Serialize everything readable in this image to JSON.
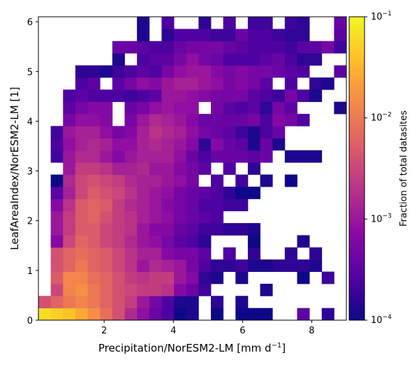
{
  "chart_data": {
    "type": "heatmap",
    "x_range": [
      0.1,
      9.0
    ],
    "y_range": [
      0.0,
      6.1
    ],
    "x_bins": 25,
    "y_bins": 25,
    "x_ticks": [
      2,
      4,
      6,
      8
    ],
    "y_ticks": [
      0,
      1,
      2,
      3,
      4,
      5,
      6
    ],
    "colormap": "plasma",
    "color_scale": "log",
    "color_range": [
      0.0001,
      0.1
    ],
    "xlabel": "Precipitation/NorESM2-LM [mm d$^{-1}$]",
    "ylabel": "LeafAreaIndex/NorESM2-LM [1]",
    "colorbar": {
      "label": "Fraction of total datasites",
      "ticks": [
        {
          "value": 0.1,
          "base": "10",
          "exp": "−1"
        },
        {
          "value": 0.01,
          "base": "10",
          "exp": "−2"
        },
        {
          "value": 0.001,
          "base": "10",
          "exp": "−3"
        },
        {
          "value": 0.0001,
          "base": "10",
          "exp": "−4"
        }
      ]
    },
    "cells_note": "each row is one y-bin from bottom (y=0) to top; each entry is log10 of fraction for x-bins left to right, null = empty",
    "cells": [
      [
        -1.2,
        -1.3,
        -1.4,
        -1.6,
        -1.8,
        -2.1,
        -2.4,
        -2.8,
        -3.1,
        -3.4,
        -3.6,
        -4.0,
        -3.9,
        null,
        -4.0,
        null,
        -4.0,
        -4.0,
        -4.0,
        null,
        null,
        -3.5,
        null,
        -3.8,
        null
      ],
      [
        -2.4,
        -2.2,
        -2.0,
        -1.9,
        -2.0,
        -2.2,
        -2.4,
        -2.6,
        -3.0,
        -3.3,
        -3.6,
        -3.9,
        -3.9,
        null,
        -3.8,
        null,
        -3.9,
        null,
        null,
        null,
        null,
        null,
        null,
        null,
        null
      ],
      [
        null,
        -2.5,
        -1.9,
        -1.8,
        -2.0,
        -2.2,
        -2.4,
        -2.5,
        -2.6,
        -2.6,
        -2.7,
        -3.2,
        -3.4,
        -3.7,
        null,
        null,
        null,
        null,
        -3.9,
        null,
        null,
        null,
        null,
        null,
        null
      ],
      [
        null,
        -2.3,
        -1.9,
        -1.9,
        -2.1,
        -2.2,
        -2.4,
        -2.6,
        -2.7,
        -2.6,
        -2.6,
        -3.0,
        -3.2,
        -3.8,
        -3.9,
        null,
        -3.9,
        null,
        null,
        null,
        null,
        -4.0,
        null,
        -3.7,
        null
      ],
      [
        null,
        -2.4,
        -2.2,
        -2.0,
        -2.2,
        -2.3,
        -2.5,
        -2.7,
        -3.0,
        -2.8,
        -2.9,
        -3.0,
        -3.3,
        -3.6,
        -3.8,
        -3.8,
        -3.7,
        -3.9,
        -3.9,
        -3.8,
        -3.8,
        -3.8,
        -3.9,
        null,
        null
      ],
      [
        null,
        -2.4,
        -2.2,
        -2.1,
        -2.2,
        -2.3,
        -2.5,
        -2.7,
        -2.9,
        -2.9,
        -3.2,
        -3.3,
        -3.3,
        -3.5,
        null,
        -3.6,
        null,
        -3.8,
        null,
        null,
        -3.8,
        null,
        -3.8,
        null,
        null
      ],
      [
        null,
        -3.2,
        -2.5,
        -2.2,
        -2.3,
        -2.5,
        -2.6,
        -2.8,
        -3.0,
        -3.1,
        -3.3,
        -3.5,
        -3.6,
        -3.8,
        null,
        null,
        null,
        -4.0,
        null,
        null,
        null,
        -3.9,
        null,
        null,
        null
      ],
      [
        null,
        -3.0,
        -2.6,
        -2.3,
        -2.3,
        -2.5,
        -2.6,
        -2.7,
        -3.0,
        -3.2,
        -3.2,
        -3.4,
        -3.5,
        -3.7,
        -3.7,
        -3.8,
        -3.8,
        -3.9,
        null,
        null,
        null,
        null,
        null,
        null,
        null
      ],
      [
        null,
        -3.0,
        -2.6,
        -2.3,
        -2.2,
        -2.4,
        -2.6,
        -2.7,
        -2.9,
        -3.0,
        -3.1,
        -3.3,
        -3.4,
        -3.5,
        -3.6,
        null,
        null,
        null,
        null,
        null,
        null,
        null,
        null,
        null,
        null
      ],
      [
        null,
        -3.2,
        -2.7,
        -2.3,
        -2.2,
        -2.3,
        -2.6,
        -2.8,
        -2.9,
        -3.0,
        -3.2,
        -3.3,
        -3.4,
        -3.6,
        -3.6,
        -3.7,
        -3.7,
        null,
        null,
        null,
        null,
        null,
        null,
        null,
        null
      ],
      [
        null,
        -3.5,
        -2.9,
        -2.5,
        -2.3,
        -2.4,
        -2.5,
        -2.7,
        -2.9,
        -3.0,
        -3.1,
        -3.3,
        -3.4,
        -3.5,
        -3.6,
        -3.8,
        -4.0,
        -4.0,
        null,
        null,
        null,
        null,
        null,
        null,
        null
      ],
      [
        null,
        -4.0,
        -2.8,
        -2.5,
        -2.4,
        -2.5,
        -2.6,
        -2.8,
        -2.9,
        -2.9,
        -3.0,
        -3.1,
        -3.3,
        null,
        -3.6,
        null,
        -3.7,
        null,
        -3.9,
        null,
        -4.0,
        null,
        null,
        null,
        null
      ],
      [
        null,
        null,
        -3.0,
        -2.6,
        -2.6,
        -2.7,
        -2.9,
        -2.9,
        -2.8,
        -3.0,
        -3.0,
        -3.2,
        -3.3,
        -3.5,
        null,
        -3.6,
        null,
        -3.8,
        null,
        null,
        null,
        null,
        null,
        null,
        null
      ],
      [
        null,
        -3.7,
        -3.0,
        -2.8,
        -2.8,
        -3.0,
        -3.2,
        -3.0,
        -2.9,
        -2.9,
        -2.9,
        -3.1,
        -3.4,
        -3.6,
        -3.4,
        -3.4,
        -3.4,
        -3.5,
        -3.4,
        null,
        -3.9,
        -3.9,
        -3.9,
        null,
        null
      ],
      [
        null,
        -3.6,
        -3.1,
        -2.9,
        -2.8,
        -2.9,
        -3.1,
        -3.1,
        -2.9,
        -2.8,
        -2.9,
        -3.0,
        -3.2,
        -3.8,
        -3.2,
        -3.4,
        -3.5,
        -3.9,
        -3.4,
        -3.9,
        null,
        null,
        null,
        null,
        null
      ],
      [
        null,
        -3.7,
        -3.0,
        -2.9,
        -2.9,
        -3.1,
        -3.3,
        -3.2,
        -2.9,
        -2.7,
        -2.8,
        -2.9,
        -3.1,
        -3.3,
        -3.4,
        -3.5,
        -3.7,
        -3.9,
        -3.6,
        -3.4,
        null,
        null,
        null,
        null,
        null
      ],
      [
        null,
        null,
        -3.3,
        -3.1,
        -3.1,
        -3.2,
        null,
        -3.3,
        -3.0,
        -2.8,
        -2.9,
        -3.0,
        -3.2,
        -3.4,
        -3.4,
        -3.4,
        -3.4,
        -3.3,
        -3.6,
        -3.2,
        -3.3,
        -3.6,
        null,
        null,
        null
      ],
      [
        null,
        null,
        -3.5,
        -3.3,
        -3.2,
        -3.2,
        null,
        -3.4,
        -3.3,
        -3.1,
        -3.0,
        -3.1,
        -3.1,
        null,
        -3.3,
        -3.5,
        -3.6,
        -3.5,
        -3.8,
        -3.3,
        -3.5,
        null,
        null,
        null,
        -3.9
      ],
      [
        null,
        null,
        -3.6,
        -3.5,
        -3.6,
        -3.6,
        -3.6,
        -3.7,
        -3.6,
        -3.5,
        -3.0,
        -3.0,
        -3.1,
        -3.2,
        -3.3,
        -3.3,
        -3.3,
        -3.5,
        -3.6,
        -3.7,
        -3.3,
        -3.6,
        -3.9,
        null,
        null
      ],
      [
        null,
        null,
        null,
        -3.6,
        -3.5,
        null,
        -3.5,
        -3.3,
        -3.1,
        -3.2,
        -3.0,
        -2.9,
        -2.9,
        -3.0,
        -3.1,
        -3.3,
        -3.2,
        -3.3,
        -3.5,
        null,
        -3.6,
        null,
        -3.8,
        -3.9,
        null
      ],
      [
        null,
        null,
        null,
        -3.8,
        -3.8,
        -3.9,
        -3.7,
        -3.6,
        -3.5,
        -3.6,
        -3.3,
        -3.1,
        -3.0,
        -3.0,
        -3.2,
        -3.3,
        -3.2,
        -3.3,
        -3.3,
        -3.4,
        -3.5,
        -3.6,
        null,
        null,
        -3.5
      ],
      [
        null,
        null,
        null,
        null,
        null,
        null,
        -3.9,
        null,
        -3.6,
        -3.5,
        -3.5,
        -3.3,
        -3.1,
        -3.3,
        -3.4,
        -3.6,
        -3.6,
        -3.6,
        -3.5,
        -3.4,
        -3.6,
        -3.8,
        -3.8,
        null,
        null
      ],
      [
        null,
        null,
        null,
        null,
        null,
        null,
        -3.4,
        -3.4,
        -3.5,
        -3.6,
        -3.6,
        -3.4,
        -3.3,
        -3.3,
        -3.3,
        -3.4,
        -3.5,
        -3.6,
        -3.6,
        -3.6,
        -3.7,
        -3.5,
        -3.5,
        -3.3,
        -3.7
      ],
      [
        null,
        null,
        null,
        null,
        null,
        null,
        null,
        null,
        -3.9,
        null,
        -3.8,
        -3.6,
        -3.6,
        -3.6,
        -3.7,
        -3.7,
        -3.4,
        -3.6,
        -3.6,
        -3.7,
        -3.8,
        -3.8,
        null,
        null,
        -3.5
      ],
      [
        null,
        null,
        null,
        null,
        null,
        null,
        null,
        null,
        -3.9,
        null,
        -3.6,
        null,
        null,
        -3.8,
        null,
        -3.6,
        null,
        -3.7,
        -3.7,
        null,
        -3.7,
        -3.8,
        null,
        null,
        -3.4
      ]
    ]
  }
}
